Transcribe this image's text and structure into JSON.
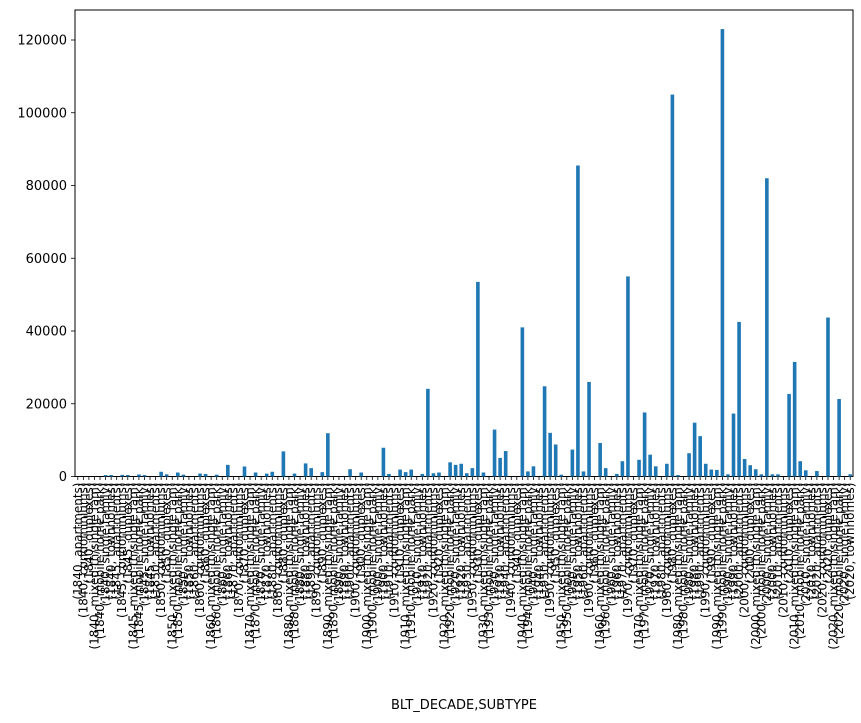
{
  "window": {
    "background_color": "#ffffff"
  },
  "chart_data": {
    "type": "bar",
    "title": "",
    "xlabel": "BLT_DECADE,SUBTYPE",
    "ylabel": "",
    "legend": "none",
    "grid": false,
    "bar_color": "#1f77b4",
    "axis_color": "#000000",
    "ylim": [
      0,
      128500
    ],
    "yticks": [
      0,
      20000,
      40000,
      60000,
      80000,
      100000,
      120000
    ],
    "category_format": "(decade, subtype)",
    "decades": [
      1840,
      1845,
      1850,
      1860,
      1870,
      1880,
      1890,
      1900,
      1910,
      1920,
      1930,
      1940,
      1950,
      1960,
      1970,
      1980,
      1990,
      2000,
      2010,
      2020
    ],
    "subtypes": [
      "apartments",
      "condominiums",
      "duplexes",
      "mixed th/single fam",
      "mobile home park",
      "single family",
      "townhomes"
    ],
    "values_by_decade": [
      [
        0,
        0,
        0,
        0,
        0,
        400,
        400
      ],
      [
        0,
        450,
        400,
        0,
        550,
        400,
        0
      ],
      [
        0,
        1300,
        600,
        0,
        1100,
        500,
        0
      ],
      [
        0,
        800,
        700,
        0,
        500,
        0,
        3200
      ],
      [
        0,
        0,
        2750,
        0,
        1100,
        0,
        800
      ],
      [
        1300,
        0,
        6900,
        0,
        800,
        0,
        3600
      ],
      [
        2300,
        0,
        1200,
        11900,
        0,
        0,
        0
      ],
      [
        2000,
        0,
        1100,
        0,
        0,
        0,
        7900
      ],
      [
        700,
        0,
        1900,
        1200,
        1900,
        0,
        700
      ],
      [
        24100,
        900,
        1100,
        0,
        3900,
        3200,
        3500
      ],
      [
        900,
        2300,
        53500,
        1100,
        0,
        12900,
        5100
      ],
      [
        7000,
        0,
        0,
        41000,
        1400,
        2800,
        0
      ],
      [
        24800,
        12000,
        8800,
        500,
        0,
        7400,
        85500
      ],
      [
        1400,
        26000,
        0,
        9200,
        2300,
        0,
        700
      ],
      [
        4200,
        55000,
        0,
        4600,
        17600,
        6000,
        2800
      ],
      [
        0,
        3500,
        105000,
        400,
        0,
        6400,
        14800
      ],
      [
        11100,
        3500,
        1900,
        1800,
        123000,
        600,
        17300
      ],
      [
        42500,
        4800,
        3100,
        2000,
        600,
        82000,
        600
      ],
      [
        600,
        0,
        22700,
        31500,
        4200,
        1700,
        0
      ],
      [
        1500,
        0,
        43700,
        0,
        21300,
        0,
        600
      ]
    ]
  }
}
